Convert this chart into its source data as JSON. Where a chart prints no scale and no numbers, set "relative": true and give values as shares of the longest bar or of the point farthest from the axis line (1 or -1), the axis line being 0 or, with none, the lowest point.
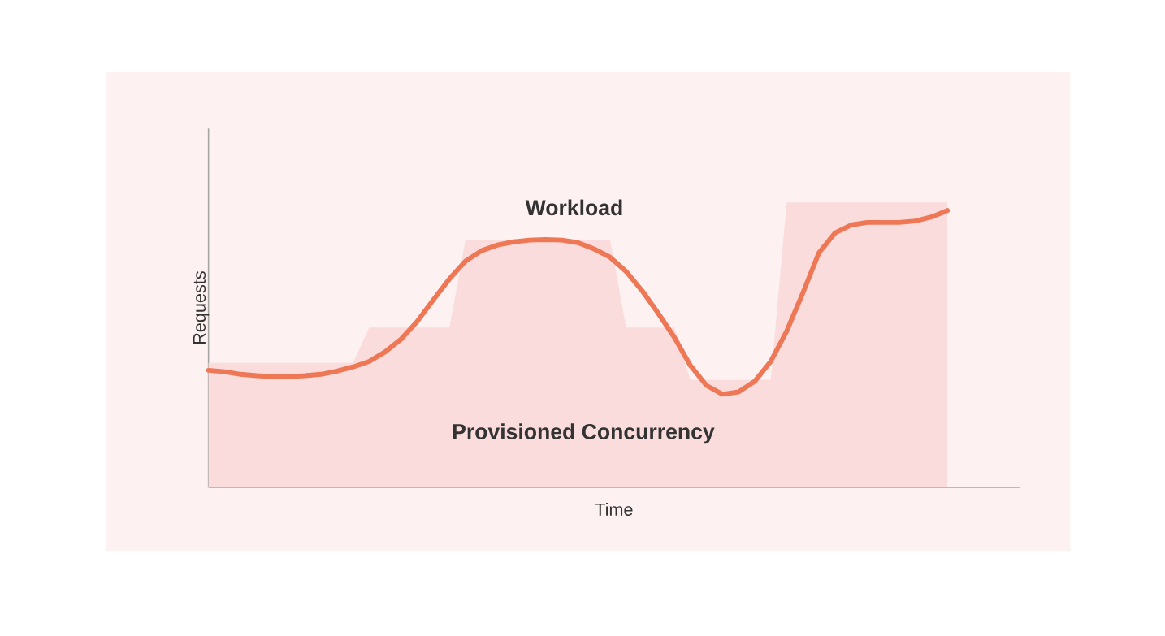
{
  "chart_data": {
    "type": "area",
    "relative": true,
    "xlabel": "Time",
    "ylabel": "Requests",
    "tick_labels": false,
    "categories": [
      null,
      null,
      null,
      null,
      null,
      null,
      null,
      null,
      null,
      null,
      null,
      null,
      null,
      null,
      null,
      null,
      null,
      null,
      null,
      null,
      null,
      null,
      null,
      null,
      null,
      null,
      null,
      null,
      null,
      null,
      null,
      null,
      null,
      null,
      null,
      null,
      null,
      null,
      null,
      null,
      null,
      null,
      null,
      null,
      null,
      null,
      null
    ],
    "series": [
      {
        "name": "Provisioned Concurrency",
        "color": "#fbdcdc",
        "values": [
          0.437,
          0.437,
          0.437,
          0.437,
          0.437,
          0.437,
          0.437,
          0.437,
          0.437,
          0.437,
          0.561,
          0.561,
          0.561,
          0.561,
          0.561,
          0.561,
          0.87,
          0.87,
          0.87,
          0.87,
          0.87,
          0.87,
          0.87,
          0.87,
          0.87,
          0.87,
          0.561,
          0.561,
          0.561,
          0.561,
          0.377,
          0.377,
          0.377,
          0.377,
          0.377,
          0.377,
          1.0,
          1.0,
          1.0,
          1.0,
          1.0,
          1.0,
          1.0,
          1.0,
          1.0,
          1.0,
          1.0
        ]
      },
      {
        "name": "Workload",
        "type": "line",
        "color": "#ee7755",
        "values": [
          0.411,
          0.406,
          0.397,
          0.392,
          0.389,
          0.389,
          0.392,
          0.397,
          0.408,
          0.423,
          0.442,
          0.476,
          0.521,
          0.583,
          0.659,
          0.732,
          0.794,
          0.831,
          0.851,
          0.862,
          0.868,
          0.87,
          0.868,
          0.859,
          0.837,
          0.808,
          0.758,
          0.69,
          0.611,
          0.527,
          0.428,
          0.358,
          0.327,
          0.335,
          0.372,
          0.442,
          0.549,
          0.682,
          0.823,
          0.893,
          0.921,
          0.93,
          0.93,
          0.93,
          0.935,
          0.949,
          0.972
        ]
      }
    ]
  }
}
